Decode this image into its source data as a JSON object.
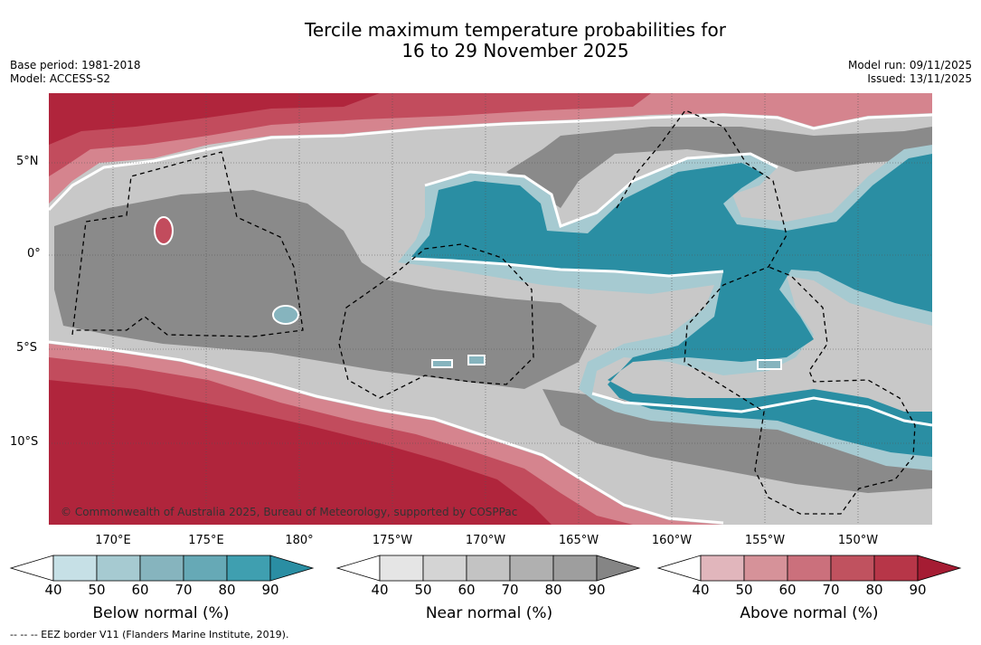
{
  "title_line1": "Tercile maximum temperature probabilities for",
  "title_line2": "16 to 29 November 2025",
  "meta_left": {
    "base_period": "Base period: 1981-2018",
    "model": "Model: ACCESS-S2"
  },
  "meta_right": {
    "model_run": "Model run: 09/11/2025",
    "issued": "Issued: 13/11/2025"
  },
  "copyright": "© Commonwealth of Australia 2025, Bureau of Meteorology, supported by COSPPac",
  "footer": "--  --  -- EEZ border V11 (Flanders Marine Institute, 2019).",
  "lat_labels": [
    "5°N",
    "0°",
    "5°S",
    "10°S"
  ],
  "lon_labels": [
    "170°E",
    "175°E",
    "180°",
    "175°W",
    "170°W",
    "165°W",
    "160°W",
    "155°W",
    "150°W"
  ],
  "colorbars": [
    {
      "name": "below",
      "label": "Below normal (%)",
      "ticks": [
        "40",
        "50",
        "60",
        "70",
        "80",
        "90"
      ],
      "colors": [
        "#ffffff",
        "#c6e0e6",
        "#a6cad1",
        "#86b4be",
        "#66a9b6",
        "#3f9fb0",
        "#2a8ea3"
      ]
    },
    {
      "name": "near",
      "label": "Near normal (%)",
      "ticks": [
        "40",
        "50",
        "60",
        "70",
        "80",
        "90"
      ],
      "colors": [
        "#ffffff",
        "#e5e5e5",
        "#d4d4d4",
        "#c3c3c3",
        "#b0b0b0",
        "#9e9e9e",
        "#858585"
      ]
    },
    {
      "name": "above",
      "label": "Above normal (%)",
      "ticks": [
        "40",
        "50",
        "60",
        "70",
        "80",
        "90"
      ],
      "colors": [
        "#ffffff",
        "#e1b6bc",
        "#d69299",
        "#cb707c",
        "#c0525f",
        "#b73648",
        "#a51c33"
      ]
    }
  ]
}
